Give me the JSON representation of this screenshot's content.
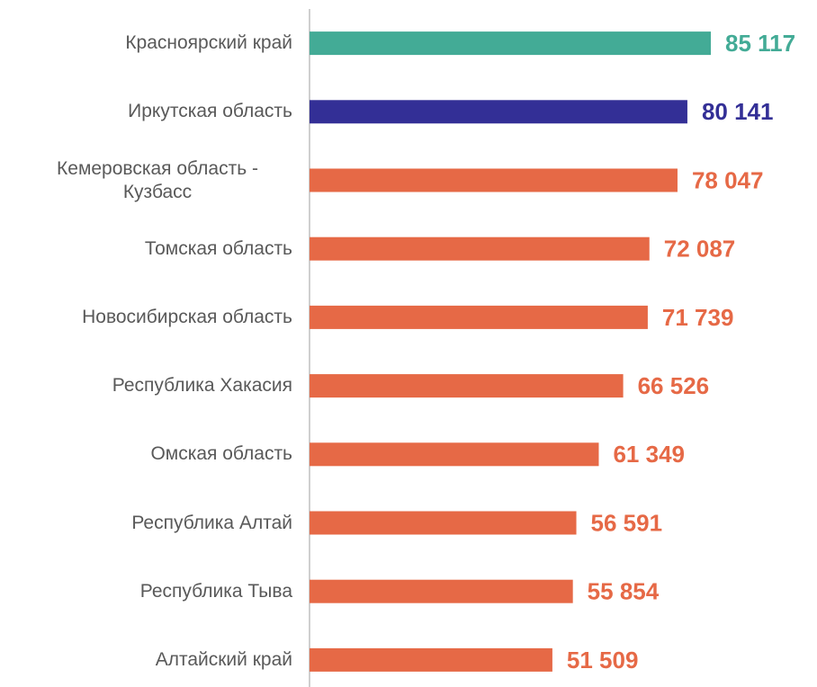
{
  "chart_data": {
    "type": "bar",
    "orientation": "horizontal",
    "categories": [
      "Красноярский край",
      "Иркутская область",
      "Кемеровская область - Кузбасс",
      "Томская область",
      "Новосибирская область",
      "Республика Хакасия",
      "Омская область",
      "Республика Алтай",
      "Республика Тыва",
      "Алтайский край"
    ],
    "values": [
      85117,
      80141,
      78047,
      72087,
      71739,
      66526,
      61349,
      56591,
      55854,
      51509
    ],
    "value_labels": [
      "85 117",
      "80 141",
      "78 047",
      "72 087",
      "71 739",
      "66 526",
      "61 349",
      "56 591",
      "55 854",
      "51 509"
    ],
    "colors": [
      "#43ab96",
      "#332f96",
      "#e66946",
      "#e66946",
      "#e66946",
      "#e66946",
      "#e66946",
      "#e66946",
      "#e66946",
      "#e66946"
    ],
    "xlim": [
      0,
      100000
    ]
  }
}
